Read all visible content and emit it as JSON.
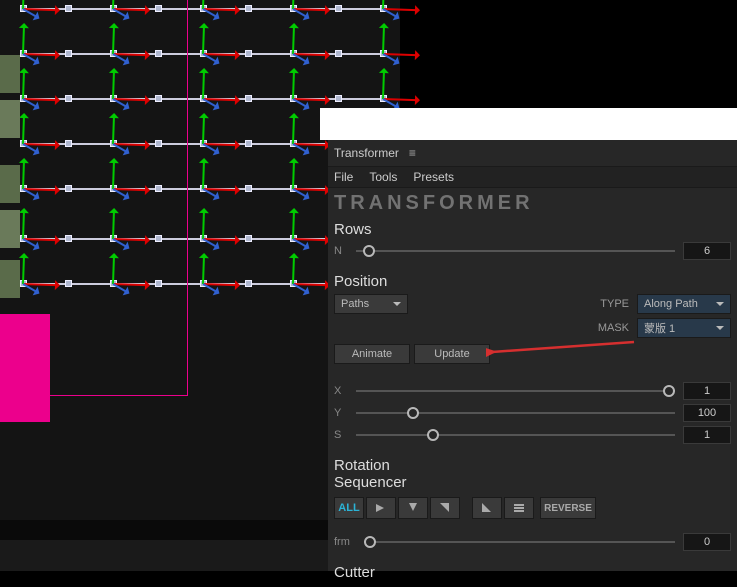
{
  "panel": {
    "title": "Transformer",
    "menu": {
      "file": "File",
      "tools": "Tools",
      "presets": "Presets"
    },
    "logo": "TRANSFORMER"
  },
  "rows": {
    "title": "Rows",
    "n_label": "N",
    "n_value": "6",
    "n_slider_pct": 4
  },
  "position": {
    "title": "Position",
    "paths_label": "Paths",
    "type_label": "TYPE",
    "type_value": "Along Path",
    "mask_label": "MASK",
    "mask_value": "蒙版 1",
    "animate_label": "Animate",
    "update_label": "Update",
    "x": {
      "label": "X",
      "value": "1",
      "pct": 98
    },
    "y": {
      "label": "Y",
      "value": "100",
      "pct": 18
    },
    "s": {
      "label": "S",
      "value": "1",
      "pct": 24
    }
  },
  "rotation": {
    "title": "Rotation",
    "seq_title": "Sequencer",
    "all_label": "ALL",
    "reverse_label": "REVERSE",
    "frm_label": "frm",
    "frm_value": "0",
    "frm_slider_pct": 2
  },
  "cutter_title": "Cutter",
  "style": {
    "accent_arrow": "#d62f2f",
    "axes": {
      "x": "#d00000",
      "y": "#00c000",
      "z": "#3060d0"
    },
    "pink": "#ec008c",
    "panel_bg": "#272727",
    "dropdown_blue": "#28394a",
    "all_color": "#2bb3d6"
  },
  "viewport": {
    "grid_cols": [
      20,
      65,
      110,
      155,
      200,
      245,
      290,
      335,
      380
    ],
    "grid_rows": [
      5,
      50,
      95,
      140,
      185,
      235,
      280
    ],
    "thumbs": [
      55,
      100,
      165,
      210,
      260
    ]
  }
}
